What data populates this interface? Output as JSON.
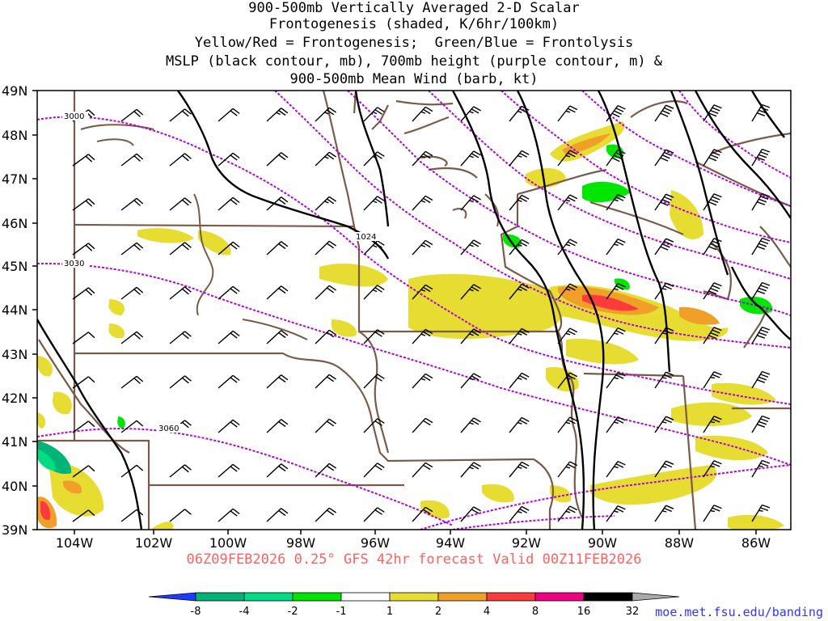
{
  "title_lines": [
    "900-500mb Vertically Averaged 2-D Scalar",
    "Frontogenesis (shaded, K/6hr/100km)",
    "Yellow/Red = Frontogenesis;  Green/Blue = Frontolysis",
    "MSLP (black contour, mb), 700mb height (purple contour, m) &",
    "900-500mb Mean Wind (barb, kt)"
  ],
  "valid_line": "06Z09FEB2026 0.25° GFS 42hr forecast Valid 00Z11FEB2026",
  "credit": "moe.met.fsu.edu/banding",
  "latitudes": [
    "49N",
    "48N",
    "47N",
    "46N",
    "45N",
    "44N",
    "43N",
    "42N",
    "41N",
    "40N",
    "39N"
  ],
  "longitudes": [
    "104W",
    "102W",
    "100W",
    "98W",
    "96W",
    "94W",
    "92W",
    "90W",
    "88W",
    "86W"
  ],
  "colorbar": {
    "labels": [
      "-8",
      "-4",
      "-2",
      "-1",
      "1",
      "2",
      "4",
      "8",
      "16",
      "32"
    ],
    "colors": [
      "#1e3cff",
      "#00b478",
      "#00dc82",
      "#00e600",
      "#ffffff",
      "#e6dc32",
      "#f0a028",
      "#fa3c3c",
      "#f00082",
      "#000000",
      "#aaaaaa"
    ]
  },
  "contour_labels": {
    "h3000": "3000",
    "h3030": "3030",
    "h3060": "3060",
    "p1024": "1024"
  },
  "colors": {
    "state_lines": "#7a5a48",
    "height_contour": "#b400dc",
    "mslp_contour": "#000000",
    "valid_text": "#ff6060",
    "credit_text": "#3333ff"
  }
}
